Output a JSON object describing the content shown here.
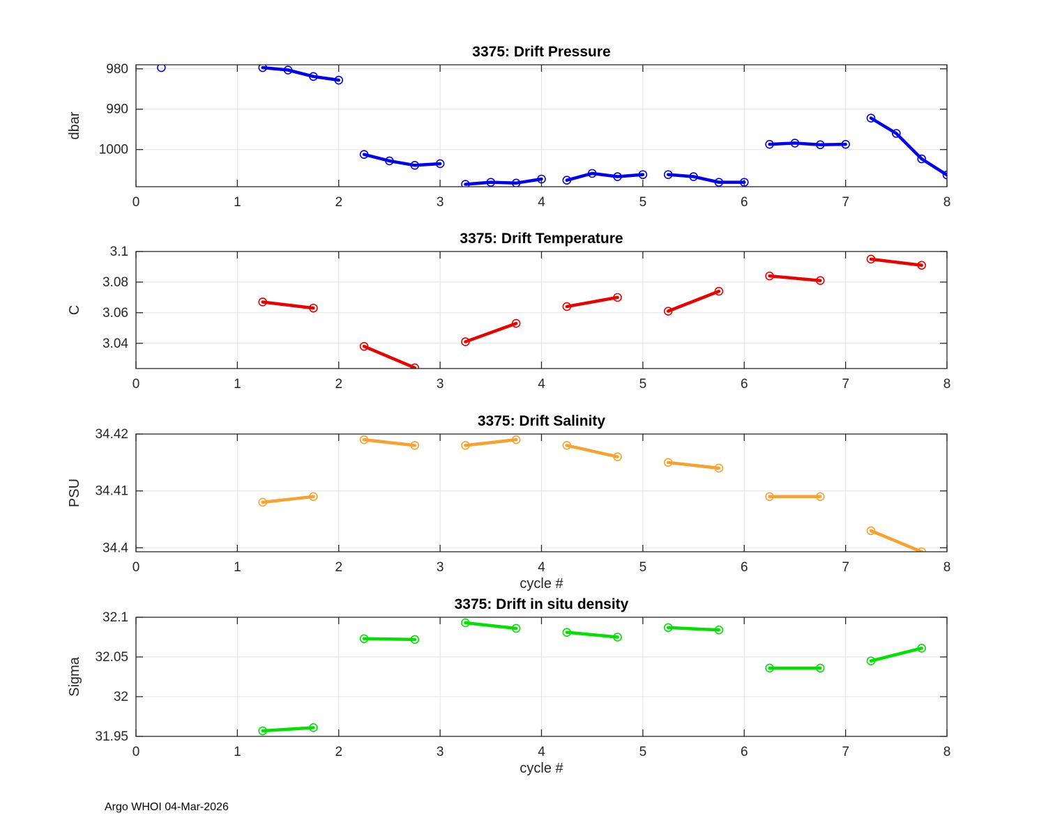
{
  "figure": {
    "footer": "Argo WHOI 04-Mar-2026",
    "background_color": "#ffffff",
    "axis_color": "#262626",
    "grid_color": "#e2e2e2",
    "xlabel_shared": "cycle #"
  },
  "chart_data": [
    {
      "id": "pressure",
      "type": "line",
      "title": "3375: Drift Pressure",
      "ylabel": "dbar",
      "xlabel": "",
      "line_color": "#0000EE",
      "marker": "open-circle",
      "grid": true,
      "xlim": [
        0,
        8
      ],
      "ylim": [
        979.0,
        1009.2
      ],
      "y_reversed": true,
      "xticks": [
        0,
        1,
        2,
        3,
        4,
        5,
        6,
        7,
        8
      ],
      "xtick_labels": [
        "0",
        "1",
        "2",
        "3",
        "4",
        "5",
        "6",
        "7",
        "8"
      ],
      "yticks": [
        980,
        990,
        1000
      ],
      "ytick_labels": [
        "980",
        "990",
        "1000"
      ],
      "segments": [
        {
          "x": [
            0.25
          ],
          "y": [
            979.7
          ]
        },
        {
          "x": [
            1.25,
            1.5,
            1.75,
            2.0
          ],
          "y": [
            979.7,
            980.3,
            981.9,
            982.8
          ]
        },
        {
          "x": [
            2.25,
            2.5,
            2.75,
            3.0
          ],
          "y": [
            1001.2,
            1002.8,
            1003.9,
            1003.5
          ]
        },
        {
          "x": [
            3.25,
            3.5,
            3.75,
            4.0
          ],
          "y": [
            1008.6,
            1008.1,
            1008.3,
            1007.3
          ]
        },
        {
          "x": [
            4.25,
            4.5,
            4.75,
            5.0
          ],
          "y": [
            1007.6,
            1005.9,
            1006.7,
            1006.2
          ]
        },
        {
          "x": [
            5.25,
            5.5,
            5.75,
            6.0
          ],
          "y": [
            1006.2,
            1006.7,
            1008.1,
            1008.1
          ]
        },
        {
          "x": [
            6.25,
            6.5,
            6.75,
            7.0
          ],
          "y": [
            998.7,
            998.4,
            998.8,
            998.7
          ]
        },
        {
          "x": [
            7.25,
            7.5,
            7.75,
            8.0
          ],
          "y": [
            992.2,
            996.0,
            1002.3,
            1006.3
          ]
        }
      ]
    },
    {
      "id": "temperature",
      "type": "line",
      "title": "3375: Drift Temperature",
      "ylabel": "C",
      "xlabel": "",
      "line_color": "#EB0000",
      "marker": "open-circle",
      "grid": true,
      "xlim": [
        0,
        8
      ],
      "ylim": [
        3.0235,
        3.1
      ],
      "y_reversed": false,
      "xticks": [
        0,
        1,
        2,
        3,
        4,
        5,
        6,
        7,
        8
      ],
      "xtick_labels": [
        "0",
        "1",
        "2",
        "3",
        "4",
        "5",
        "6",
        "7",
        "8"
      ],
      "yticks": [
        3.04,
        3.06,
        3.08,
        3.1
      ],
      "ytick_labels": [
        "3.04",
        "3.06",
        "3.08",
        "3.1"
      ],
      "segments": [
        {
          "x": [
            1.25,
            1.75
          ],
          "y": [
            3.067,
            3.063
          ]
        },
        {
          "x": [
            2.25,
            2.75
          ],
          "y": [
            3.038,
            3.024
          ]
        },
        {
          "x": [
            3.25,
            3.75
          ],
          "y": [
            3.041,
            3.053
          ]
        },
        {
          "x": [
            4.25,
            4.75
          ],
          "y": [
            3.064,
            3.07
          ]
        },
        {
          "x": [
            5.25,
            5.75
          ],
          "y": [
            3.061,
            3.074
          ]
        },
        {
          "x": [
            6.25,
            6.75
          ],
          "y": [
            3.084,
            3.081
          ]
        },
        {
          "x": [
            7.25,
            7.75
          ],
          "y": [
            3.095,
            3.091
          ]
        }
      ]
    },
    {
      "id": "salinity",
      "type": "line",
      "title": "3375: Drift Salinity",
      "ylabel": "PSU",
      "xlabel": "cycle #",
      "line_color": "#F9A12E",
      "marker": "open-circle",
      "grid": true,
      "xlim": [
        0,
        8
      ],
      "ylim": [
        34.3993,
        34.42
      ],
      "y_reversed": false,
      "xticks": [
        0,
        1,
        2,
        3,
        4,
        5,
        6,
        7,
        8
      ],
      "xtick_labels": [
        "0",
        "1",
        "2",
        "3",
        "4",
        "5",
        "6",
        "7",
        "8"
      ],
      "yticks": [
        34.4,
        34.41,
        34.42
      ],
      "ytick_labels": [
        "34.4",
        "34.41",
        "34.42"
      ],
      "segments": [
        {
          "x": [
            1.25,
            1.75
          ],
          "y": [
            34.408,
            34.409
          ]
        },
        {
          "x": [
            2.25,
            2.75
          ],
          "y": [
            34.419,
            34.418
          ]
        },
        {
          "x": [
            3.25,
            3.75
          ],
          "y": [
            34.418,
            34.419
          ]
        },
        {
          "x": [
            4.25,
            4.75
          ],
          "y": [
            34.418,
            34.416
          ]
        },
        {
          "x": [
            5.25,
            5.75
          ],
          "y": [
            34.415,
            34.414
          ]
        },
        {
          "x": [
            6.25,
            6.75
          ],
          "y": [
            34.409,
            34.409
          ]
        },
        {
          "x": [
            7.25,
            7.75
          ],
          "y": [
            34.403,
            34.3993
          ]
        }
      ]
    },
    {
      "id": "density",
      "type": "line",
      "title": "3375: Drift in situ density",
      "ylabel": "Sigma",
      "xlabel": "cycle #",
      "line_color": "#00E100",
      "marker": "open-circle",
      "grid": true,
      "xlim": [
        0,
        8
      ],
      "ylim": [
        31.95,
        32.1
      ],
      "y_reversed": false,
      "xticks": [
        0,
        1,
        2,
        3,
        4,
        5,
        6,
        7,
        8
      ],
      "xtick_labels": [
        "0",
        "1",
        "2",
        "3",
        "4",
        "5",
        "6",
        "7",
        "8"
      ],
      "yticks": [
        31.95,
        32,
        32.05,
        32.1
      ],
      "ytick_labels": [
        "31.95",
        "32",
        "32.05",
        "32.1"
      ],
      "segments": [
        {
          "x": [
            1.25,
            1.75
          ],
          "y": [
            31.957,
            31.961
          ]
        },
        {
          "x": [
            2.25,
            2.75
          ],
          "y": [
            32.073,
            32.072
          ]
        },
        {
          "x": [
            3.25,
            3.75
          ],
          "y": [
            32.093,
            32.086
          ]
        },
        {
          "x": [
            4.25,
            4.75
          ],
          "y": [
            32.081,
            32.075
          ]
        },
        {
          "x": [
            5.25,
            5.75
          ],
          "y": [
            32.087,
            32.084
          ]
        },
        {
          "x": [
            6.25,
            6.75
          ],
          "y": [
            32.036,
            32.036
          ]
        },
        {
          "x": [
            7.25,
            7.75
          ],
          "y": [
            32.045,
            32.061
          ]
        }
      ]
    }
  ]
}
